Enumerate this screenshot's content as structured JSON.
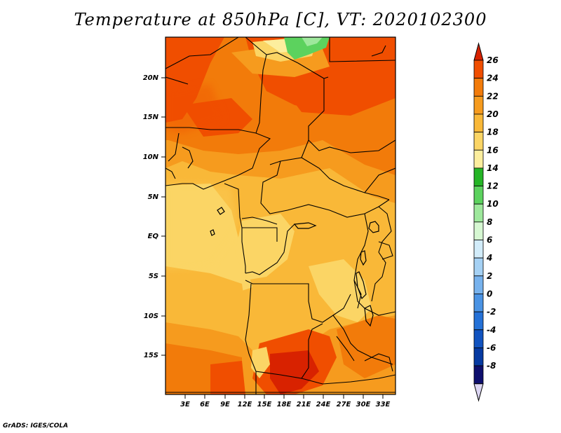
{
  "title": "Temperature at 850hPa [C], VT: 2020102300",
  "credit": "GrADS: IGES/COLA",
  "map": {
    "lat_labels": [
      "20N",
      "15N",
      "10N",
      "5N",
      "EQ",
      "5S",
      "10S",
      "15S"
    ],
    "lon_labels": [
      "3E",
      "6E",
      "9E",
      "12E",
      "15E",
      "18E",
      "21E",
      "24E",
      "27E",
      "30E",
      "33E"
    ]
  },
  "colorbar": {
    "labels": [
      "26",
      "24",
      "22",
      "20",
      "18",
      "16",
      "14",
      "12",
      "10",
      "8",
      "6",
      "4",
      "2",
      "0",
      "-2",
      "-4",
      "-6",
      "-8"
    ],
    "colors": [
      "#d82200",
      "#f04e00",
      "#f27b0a",
      "#f69b1e",
      "#f9b838",
      "#fbd565",
      "#fcee9e",
      "#25b526",
      "#5cd25e",
      "#9ee89c",
      "#d6f7d2",
      "#d2ecfa",
      "#a5d1f4",
      "#77b2ed",
      "#4a93e4",
      "#2471d7",
      "#1153c0",
      "#063aa2",
      "#0e0f6e",
      "#dcd6f3"
    ]
  },
  "chart_data": {
    "type": "heatmap",
    "title": "Temperature at 850hPa [C], VT: 2020102300",
    "variable": "Temperature at 850hPa",
    "unit": "C",
    "valid_time": "2020102300",
    "colorbar_levels": [
      -8,
      -6,
      -4,
      -2,
      0,
      2,
      4,
      6,
      8,
      10,
      12,
      14,
      16,
      18,
      20,
      22,
      24,
      26
    ],
    "x_ticks": [
      "3E",
      "6E",
      "9E",
      "12E",
      "15E",
      "18E",
      "21E",
      "24E",
      "27E",
      "30E",
      "33E"
    ],
    "y_ticks": [
      "20N",
      "15N",
      "10N",
      "5N",
      "EQ",
      "5S",
      "10S",
      "15S"
    ],
    "lon_range": [
      0,
      34.5
    ],
    "lat_range": [
      -19.5,
      24.5
    ]
  }
}
